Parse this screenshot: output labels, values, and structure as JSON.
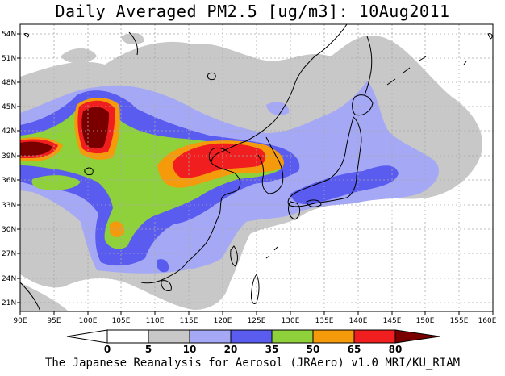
{
  "title": "Daily Averaged PM2.5 [ug/m3]: 10Aug2011",
  "footer": "The Japanese Reanalysis for Aerosol (JRAero) v1.0 MRI/KU_RIAM",
  "lat_labels": [
    "54N",
    "51N",
    "48N",
    "45N",
    "42N",
    "39N",
    "36N",
    "33N",
    "30N",
    "27N",
    "24N",
    "21N"
  ],
  "lon_labels": [
    "90E",
    "95E",
    "100E",
    "105E",
    "110E",
    "115E",
    "120E",
    "125E",
    "130E",
    "135E",
    "140E",
    "145E",
    "150E",
    "155E",
    "160E"
  ],
  "colorbar": {
    "labels": [
      "0",
      "5",
      "10",
      "20",
      "35",
      "50",
      "65",
      "80"
    ],
    "colors": [
      "#ffffff",
      "#ffffff",
      "#c8c8c8",
      "#a5a8f5",
      "#5a5cf0",
      "#8ed13a",
      "#f59a0a",
      "#f01e1e",
      "#7a0000"
    ]
  }
}
